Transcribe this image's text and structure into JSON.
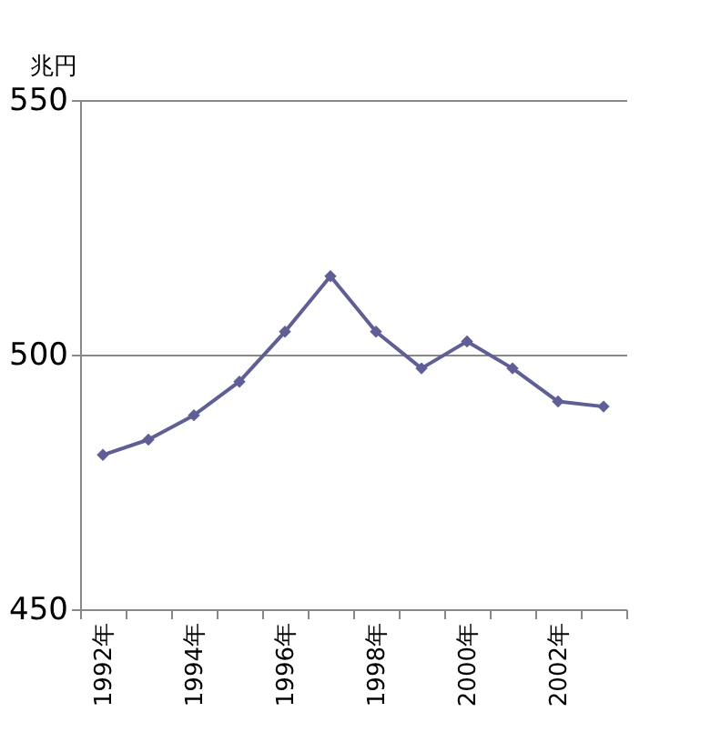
{
  "chart_data": {
    "type": "line",
    "ylabel": "兆円",
    "categories": [
      "1992年",
      null,
      "1994年",
      null,
      "1996年",
      null,
      "1998年",
      null,
      "2000年",
      null,
      "2002年",
      null
    ],
    "series": [
      {
        "color": "#5f5f96",
        "values": [
          480.3,
          483.3,
          488.1,
          494.7,
          504.5,
          515.4,
          504.5,
          497.3,
          502.6,
          497.3,
          490.8,
          489.8
        ]
      }
    ],
    "ylim": [
      450,
      550
    ],
    "yticks": [
      450,
      500,
      550
    ],
    "grid": "y",
    "marker": "diamond",
    "line_style": "solid"
  }
}
